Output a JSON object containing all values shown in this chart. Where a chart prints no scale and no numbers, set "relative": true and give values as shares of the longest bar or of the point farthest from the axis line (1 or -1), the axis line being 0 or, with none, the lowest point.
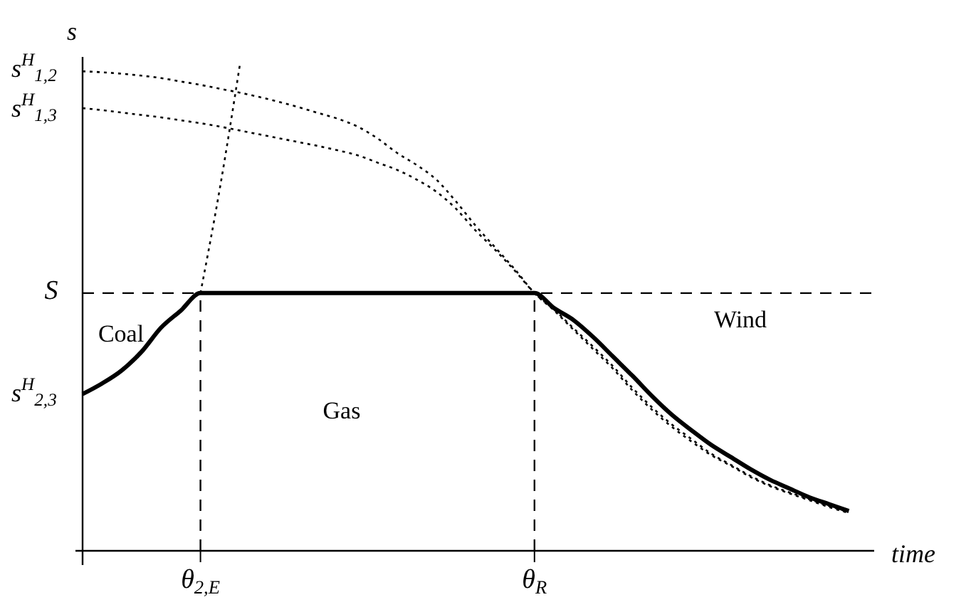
{
  "chart_data": {
    "type": "line",
    "relative": true,
    "xlabel": "time",
    "ylabel": "s",
    "categories": [
      null,
      null,
      null,
      null,
      null,
      null,
      "θ$_{2,E}$",
      null,
      null,
      null,
      null,
      null,
      null,
      null,
      null,
      null,
      null,
      null,
      null,
      null,
      null,
      null,
      null,
      "θ$_{R}$",
      null,
      null,
      null,
      null,
      null,
      null,
      null,
      null,
      null,
      null,
      null,
      null,
      null,
      null,
      null,
      null,
      null
    ],
    "series": [
      {
        "color": "#000000",
        "line_style": "solid",
        "values": [
          0.323,
          0.345,
          0.372,
          0.41,
          0.46,
          0.495,
          0.531,
          0.531,
          0.531,
          0.531,
          0.531,
          0.531,
          0.531,
          0.531,
          0.531,
          0.531,
          0.531,
          0.531,
          0.531,
          0.531,
          0.531,
          0.531,
          0.531,
          0.531,
          0.5,
          0.475,
          0.44,
          0.4,
          0.36,
          0.318,
          0.28,
          0.248,
          0.218,
          0.193,
          0.168,
          0.146,
          0.128,
          0.11,
          0.096,
          0.082,
          null
        ]
      },
      {
        "color": "#000000",
        "line_style": "dotted",
        "values": [
          null,
          null,
          null,
          null,
          null,
          null,
          0.531,
          0.75,
          1,
          null,
          null,
          null,
          null,
          null,
          null,
          null,
          null,
          null,
          null,
          null,
          null,
          null,
          null,
          null,
          null,
          null,
          null,
          null,
          null,
          null,
          null,
          null,
          null,
          null,
          null,
          null,
          null,
          null,
          null,
          null,
          null
        ]
      },
      {
        "color": "#000000",
        "line_style": "dotted",
        "values": [
          0.988,
          0.986,
          0.983,
          0.979,
          0.974,
          0.967,
          0.96,
          0.952,
          0.944,
          0.935,
          0.925,
          0.914,
          0.902,
          0.89,
          0.874,
          0.85,
          0.82,
          0.795,
          0.765,
          0.72,
          0.67,
          0.625,
          0.58,
          0.531,
          0.495,
          0.455,
          0.415,
          0.375,
          0.33,
          0.29,
          0.255,
          0.225,
          0.197,
          0.175,
          0.152,
          0.133,
          0.118,
          0.104,
          0.09,
          0.078,
          null
        ]
      },
      {
        "color": "#000000",
        "line_style": "dotted",
        "values": [
          0.912,
          0.908,
          0.903,
          0.898,
          0.893,
          0.887,
          0.881,
          0.874,
          0.866,
          0.858,
          0.85,
          0.842,
          0.834,
          0.825,
          0.815,
          0.8,
          0.785,
          0.765,
          0.74,
          0.705,
          0.66,
          0.62,
          0.577,
          0.531,
          0.497,
          0.458,
          0.42,
          0.38,
          0.335,
          0.295,
          0.26,
          0.23,
          0.2,
          0.177,
          0.154,
          0.135,
          0.12,
          0.106,
          0.092,
          0.08,
          null
        ]
      }
    ],
    "ref_lines": [
      {
        "axis": "y",
        "value": 0.531,
        "label": "S",
        "line_style": "dashed"
      },
      {
        "axis": "x",
        "value": "θ$_{2,E}$",
        "line_style": "dashed"
      },
      {
        "axis": "x",
        "value": "θ$_{R}$",
        "line_style": "dashed"
      }
    ],
    "annotations": [
      "s$^{H}$$_{1,2}$",
      "s$^{H}$$_{1,3}$",
      "s$^{H}$$_{2,3}$",
      "Coal",
      "Gas",
      "Wind"
    ]
  }
}
